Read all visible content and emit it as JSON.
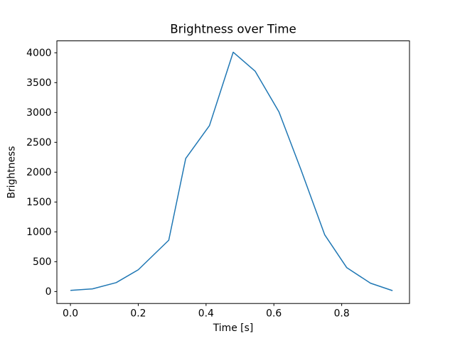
{
  "figure": {
    "background_color": "#ffffff",
    "spine_color": "#000000",
    "text_color": "#000000"
  },
  "chart_data": {
    "type": "line",
    "title": "Brightness over Time",
    "xlabel": "Time [s]",
    "ylabel": "Brightness",
    "grid": false,
    "legend": false,
    "line_color": "#1f77b4",
    "xlim": [
      -0.04,
      1.0
    ],
    "ylim": [
      -200,
      4200
    ],
    "xticks": [
      {
        "v": 0.0,
        "label": "0.0"
      },
      {
        "v": 0.2,
        "label": "0.2"
      },
      {
        "v": 0.4,
        "label": "0.4"
      },
      {
        "v": 0.6,
        "label": "0.6"
      },
      {
        "v": 0.8,
        "label": "0.8"
      }
    ],
    "yticks": [
      {
        "v": 0,
        "label": "0"
      },
      {
        "v": 500,
        "label": "500"
      },
      {
        "v": 1000,
        "label": "1000"
      },
      {
        "v": 1500,
        "label": "1500"
      },
      {
        "v": 2000,
        "label": "2000"
      },
      {
        "v": 2500,
        "label": "2500"
      },
      {
        "v": 3000,
        "label": "3000"
      },
      {
        "v": 3500,
        "label": "3500"
      },
      {
        "v": 4000,
        "label": "4000"
      }
    ],
    "series": [
      {
        "color": "#1f77b4",
        "points": [
          [
            0.0,
            20
          ],
          [
            0.065,
            45
          ],
          [
            0.135,
            150
          ],
          [
            0.2,
            365
          ],
          [
            0.29,
            860
          ],
          [
            0.34,
            2230
          ],
          [
            0.41,
            2780
          ],
          [
            0.48,
            4010
          ],
          [
            0.545,
            3690
          ],
          [
            0.615,
            3010
          ],
          [
            0.68,
            2040
          ],
          [
            0.75,
            950
          ],
          [
            0.815,
            400
          ],
          [
            0.885,
            140
          ],
          [
            0.95,
            15
          ]
        ]
      }
    ]
  }
}
